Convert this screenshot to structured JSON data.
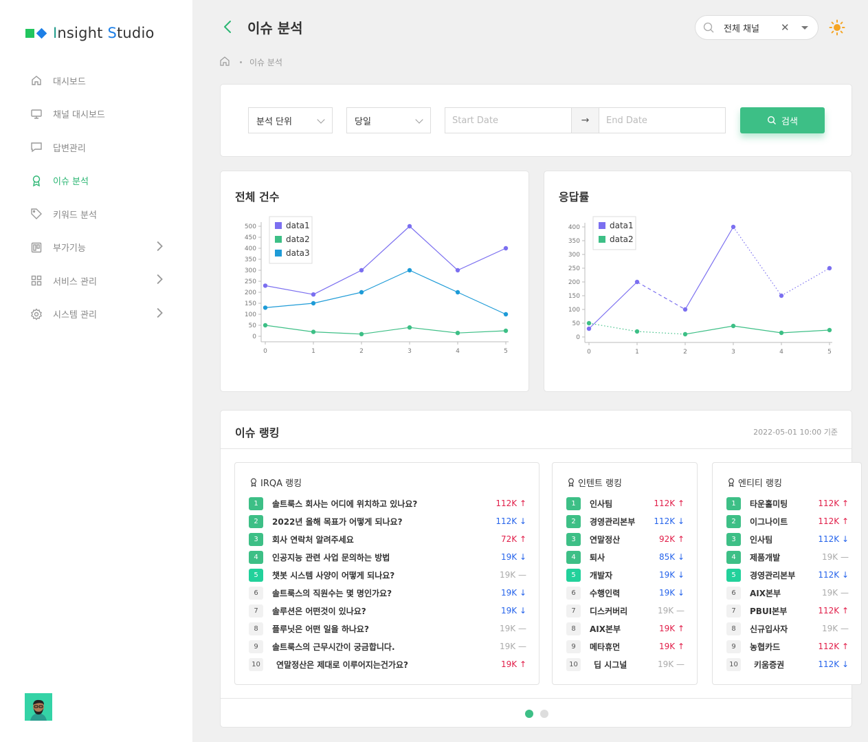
{
  "app": {
    "logo_i": "I",
    "logo_rest1": "nsight ",
    "logo_s": "S",
    "logo_rest2": "tudio"
  },
  "sidebar": {
    "items": [
      {
        "label": "대시보드",
        "icon": "home-icon",
        "active": false,
        "has_children": false
      },
      {
        "label": "채널 대시보드",
        "icon": "monitor-icon",
        "active": false,
        "has_children": false
      },
      {
        "label": "답변관리",
        "icon": "chat-icon",
        "active": false,
        "has_children": false
      },
      {
        "label": "이슈 분석",
        "icon": "award-icon",
        "active": true,
        "has_children": false
      },
      {
        "label": "키워드 분석",
        "icon": "tag-icon",
        "active": false,
        "has_children": false
      },
      {
        "label": "부가기능",
        "icon": "board-icon",
        "active": false,
        "has_children": true
      },
      {
        "label": "서비스 관리",
        "icon": "grid-icon",
        "active": false,
        "has_children": true
      },
      {
        "label": "시스템 관리",
        "icon": "gear-icon",
        "active": false,
        "has_children": true
      }
    ]
  },
  "header": {
    "title": "이슈 분석",
    "breadcrumb": "이슈 분석",
    "channel_value": "전체 채널"
  },
  "filter": {
    "unit_label": "분석 단위",
    "period_label": "당일",
    "start_placeholder": "Start Date",
    "end_placeholder": "End Date",
    "search_label": "검색"
  },
  "chart_data": [
    {
      "type": "line",
      "title": "전체 건수",
      "x": [
        0,
        1,
        2,
        3,
        4,
        5
      ],
      "ylim": [
        0,
        500
      ],
      "yticks": [
        0,
        50,
        100,
        150,
        200,
        250,
        300,
        350,
        400,
        450,
        500
      ],
      "legend": "top-left",
      "series": [
        {
          "name": "data1",
          "values": [
            230,
            190,
            300,
            500,
            300,
            400
          ],
          "color": "#7b6ff0",
          "dash": [
            "solid",
            "solid",
            "solid",
            "solid",
            "solid"
          ]
        },
        {
          "name": "data2",
          "values": [
            50,
            20,
            10,
            40,
            15,
            25
          ],
          "color": "#3dbf86",
          "dash": [
            "solid",
            "solid",
            "solid",
            "solid",
            "solid"
          ]
        },
        {
          "name": "data3",
          "values": [
            130,
            150,
            200,
            300,
            200,
            100
          ],
          "color": "#1e9bd7",
          "dash": [
            "solid",
            "solid",
            "solid",
            "solid",
            "solid"
          ]
        }
      ]
    },
    {
      "type": "line",
      "title": "응답률",
      "x": [
        0,
        1,
        2,
        3,
        4,
        5
      ],
      "ylim": [
        0,
        400
      ],
      "yticks": [
        0,
        50,
        100,
        150,
        200,
        250,
        300,
        350,
        400
      ],
      "legend": "top-left",
      "series": [
        {
          "name": "data1",
          "values": [
            30,
            200,
            100,
            400,
            150,
            250
          ],
          "color": "#7b6ff0",
          "dash": [
            "solid",
            "dashed",
            "solid",
            "dotted",
            "dotted"
          ]
        },
        {
          "name": "data2",
          "values": [
            50,
            20,
            10,
            40,
            15,
            25
          ],
          "color": "#3dbf86",
          "dash": [
            "dotted",
            "dotted",
            "solid",
            "solid",
            "solid"
          ]
        }
      ]
    }
  ],
  "ranking": {
    "title": "이슈 랭킹",
    "timestamp": "2022-05-01 10:00 기준",
    "boxes": [
      {
        "title": "IRQA 랭킹",
        "rows": [
          {
            "rank": "1",
            "label": "솔트룩스 회사는 어디에 위치하고 있나요?",
            "count": "112K",
            "trend": "up"
          },
          {
            "rank": "2",
            "label": "2022년 올해 목표가 어떻게 되나요?",
            "count": "112K",
            "trend": "down"
          },
          {
            "rank": "3",
            "label": "회사 연락처 알려주세요",
            "count": "72K",
            "trend": "up"
          },
          {
            "rank": "4",
            "label": "인공지능 관련 사업 문의하는 방법",
            "count": "19K",
            "trend": "down"
          },
          {
            "rank": "5",
            "label": "챗봇 시스템 사양이 어떻게 되나요?",
            "count": "19K",
            "trend": "flat"
          },
          {
            "rank": "6",
            "label": "솔트룩스의 직원수는 몇 명인가요?",
            "count": "19K",
            "trend": "down"
          },
          {
            "rank": "7",
            "label": "솔루션은 어떤것이 있나요?",
            "count": "19K",
            "trend": "down"
          },
          {
            "rank": "8",
            "label": "플루닛은 어떤 일을 하나요?",
            "count": "19K",
            "trend": "flat"
          },
          {
            "rank": "9",
            "label": "솔트룩스의 근무시간이 궁금합니다.",
            "count": "19K",
            "trend": "flat"
          },
          {
            "rank": "10",
            "label": "연말정산은 제대로 이루어지는건가요?",
            "count": "19K",
            "trend": "up"
          }
        ]
      },
      {
        "title": "인텐트 랭킹",
        "rows": [
          {
            "rank": "1",
            "label": "인사팀",
            "count": "112K",
            "trend": "up"
          },
          {
            "rank": "2",
            "label": "경영관리본부",
            "count": "112K",
            "trend": "down"
          },
          {
            "rank": "3",
            "label": "연말정산",
            "count": "92K",
            "trend": "up"
          },
          {
            "rank": "4",
            "label": "퇴사",
            "count": "85K",
            "trend": "down"
          },
          {
            "rank": "5",
            "label": "개발자",
            "count": "19K",
            "trend": "down"
          },
          {
            "rank": "6",
            "label": "수행인력",
            "count": "19K",
            "trend": "down"
          },
          {
            "rank": "7",
            "label": "디스커버리",
            "count": "19K",
            "trend": "flat"
          },
          {
            "rank": "8",
            "label": "AIX본부",
            "count": "19K",
            "trend": "up"
          },
          {
            "rank": "9",
            "label": "메타휴먼",
            "count": "19K",
            "trend": "up"
          },
          {
            "rank": "10",
            "label": "딥 시그널",
            "count": "19K",
            "trend": "flat"
          }
        ]
      },
      {
        "title": "엔티티 랭킹",
        "rows": [
          {
            "rank": "1",
            "label": "타운홀미팅",
            "count": "112K",
            "trend": "up"
          },
          {
            "rank": "2",
            "label": "이그나이트",
            "count": "112K",
            "trend": "up"
          },
          {
            "rank": "3",
            "label": "인사팀",
            "count": "112K",
            "trend": "down"
          },
          {
            "rank": "4",
            "label": "제품개발",
            "count": "19K",
            "trend": "flat"
          },
          {
            "rank": "5",
            "label": "경영관리본부",
            "count": "112K",
            "trend": "down"
          },
          {
            "rank": "6",
            "label": "AIX본부",
            "count": "19K",
            "trend": "flat"
          },
          {
            "rank": "7",
            "label": "PBUI본부",
            "count": "112K",
            "trend": "up"
          },
          {
            "rank": "8",
            "label": "신규입사자",
            "count": "19K",
            "trend": "flat"
          },
          {
            "rank": "9",
            "label": "농협카드",
            "count": "112K",
            "trend": "up"
          },
          {
            "rank": "10",
            "label": "키움증권",
            "count": "112K",
            "trend": "down"
          }
        ]
      }
    ],
    "page_count": 2,
    "active_page": 0
  }
}
